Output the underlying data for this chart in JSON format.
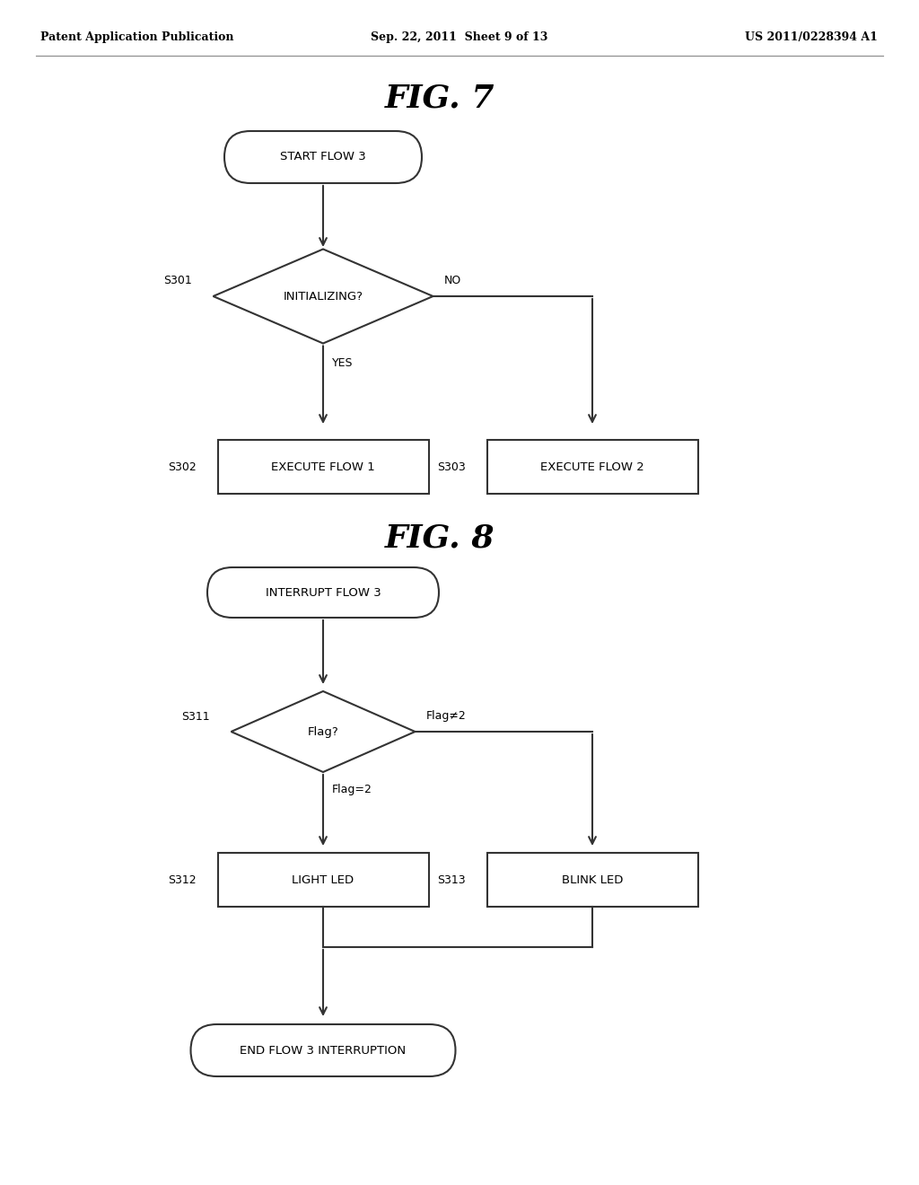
{
  "background_color": "#ffffff",
  "header_left": "Patent Application Publication",
  "header_center": "Sep. 22, 2011  Sheet 9 of 13",
  "header_right": "US 2011/0228394 A1",
  "fig7_title": "FIG. 7",
  "fig8_title": "FIG. 8",
  "line_color": "#333333",
  "text_color": "#000000",
  "box_line_color": "#555555",
  "fig7": {
    "start_text": "START FLOW 3",
    "diamond_text": "INITIALIZING?",
    "diamond_label": "S301",
    "yes_label": "YES",
    "no_label": "NO",
    "box1_text": "EXECUTE FLOW 1",
    "box1_label": "S302",
    "box2_text": "EXECUTE FLOW 2",
    "box2_label": "S303"
  },
  "fig8": {
    "start_text": "INTERRUPT FLOW 3",
    "diamond_text": "Flag?",
    "diamond_label": "S311",
    "yes_label": "Flag=2",
    "no_label": "Flag≠2",
    "box1_text": "LIGHT LED",
    "box1_label": "S312",
    "box2_text": "BLINK LED",
    "box2_label": "S313",
    "end_text": "END FLOW 3 INTERRUPTION"
  }
}
